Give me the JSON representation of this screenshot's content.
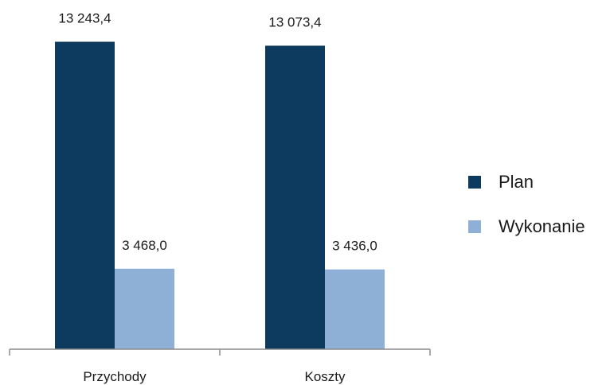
{
  "chart_data": {
    "type": "bar",
    "categories": [
      "Przychody",
      "Koszty"
    ],
    "series": [
      {
        "name": "Plan",
        "values": [
          13243.4,
          13073.4
        ],
        "labels": [
          "13 243,4",
          "13 073,4"
        ],
        "color": "#0d3a5f"
      },
      {
        "name": "Wykonanie",
        "values": [
          3468.0,
          3436.0
        ],
        "labels": [
          "3 468,0",
          "3 436,0"
        ],
        "color": "#8eb0d6"
      }
    ],
    "ylim": [
      0,
      13500
    ],
    "grid": false,
    "legend": "right",
    "title": "",
    "xlabel": "",
    "ylabel": ""
  }
}
